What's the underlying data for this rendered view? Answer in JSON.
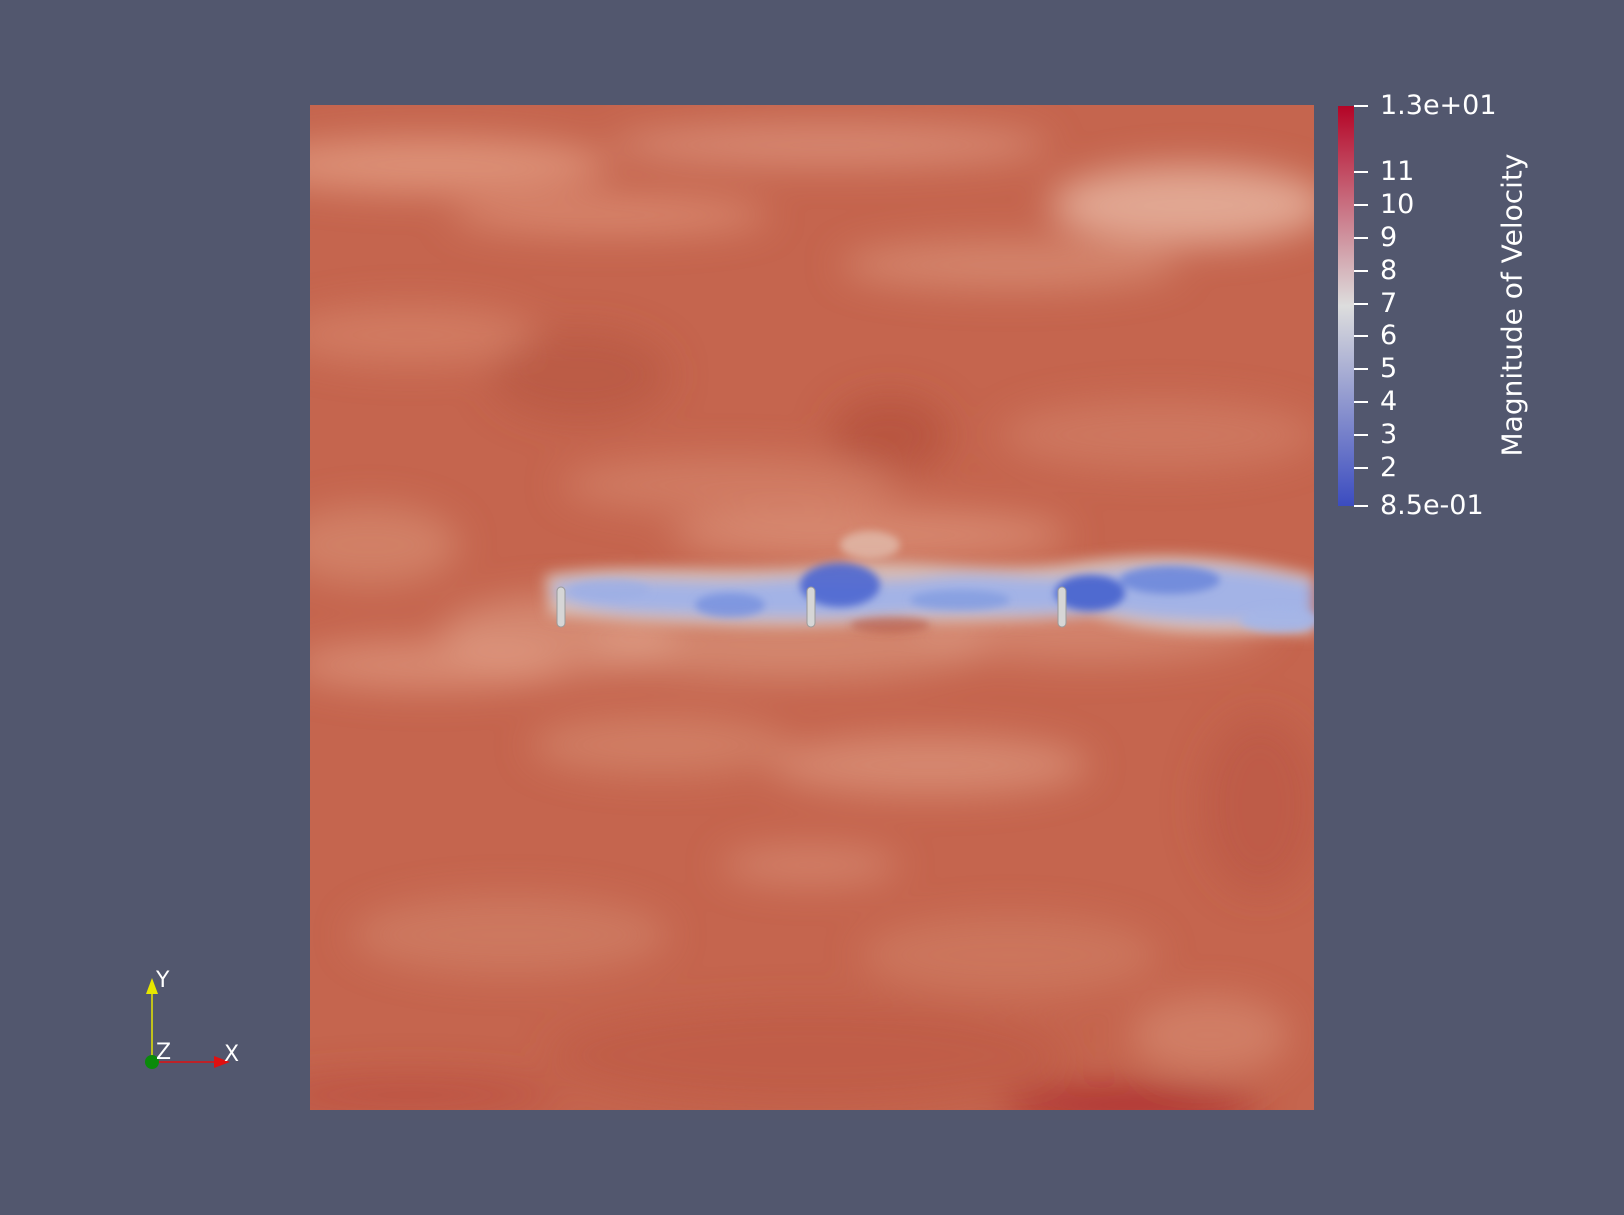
{
  "colorbar": {
    "title": "Magnitude of Velocity",
    "range": [
      0.85,
      13
    ],
    "range_labels": {
      "max": "1.3e+01",
      "min": "8.5e-01"
    },
    "ticks": [
      {
        "value": 13,
        "label": "1.3e+01"
      },
      {
        "value": 11,
        "label": "11"
      },
      {
        "value": 10,
        "label": "10"
      },
      {
        "value": 9,
        "label": "9"
      },
      {
        "value": 8,
        "label": "8"
      },
      {
        "value": 7,
        "label": "7"
      },
      {
        "value": 6,
        "label": "6"
      },
      {
        "value": 5,
        "label": "5"
      },
      {
        "value": 4,
        "label": "4"
      },
      {
        "value": 3,
        "label": "3"
      },
      {
        "value": 2,
        "label": "2"
      },
      {
        "value": 0.85,
        "label": "8.5e-01"
      }
    ],
    "colormap": "Cool to Warm",
    "colors": {
      "low": "#3b4cc0",
      "mid": "#dddddd",
      "high": "#b40426"
    }
  },
  "axes": {
    "x_label": "X",
    "y_label": "Y",
    "z_label": "Z",
    "x_color": "#e01010",
    "y_color": "#e6e600",
    "z_color": "#0a8a0a"
  },
  "scene": {
    "background": "#52576e",
    "turbines": 3,
    "turbine_color": "#d6d6d6"
  }
}
